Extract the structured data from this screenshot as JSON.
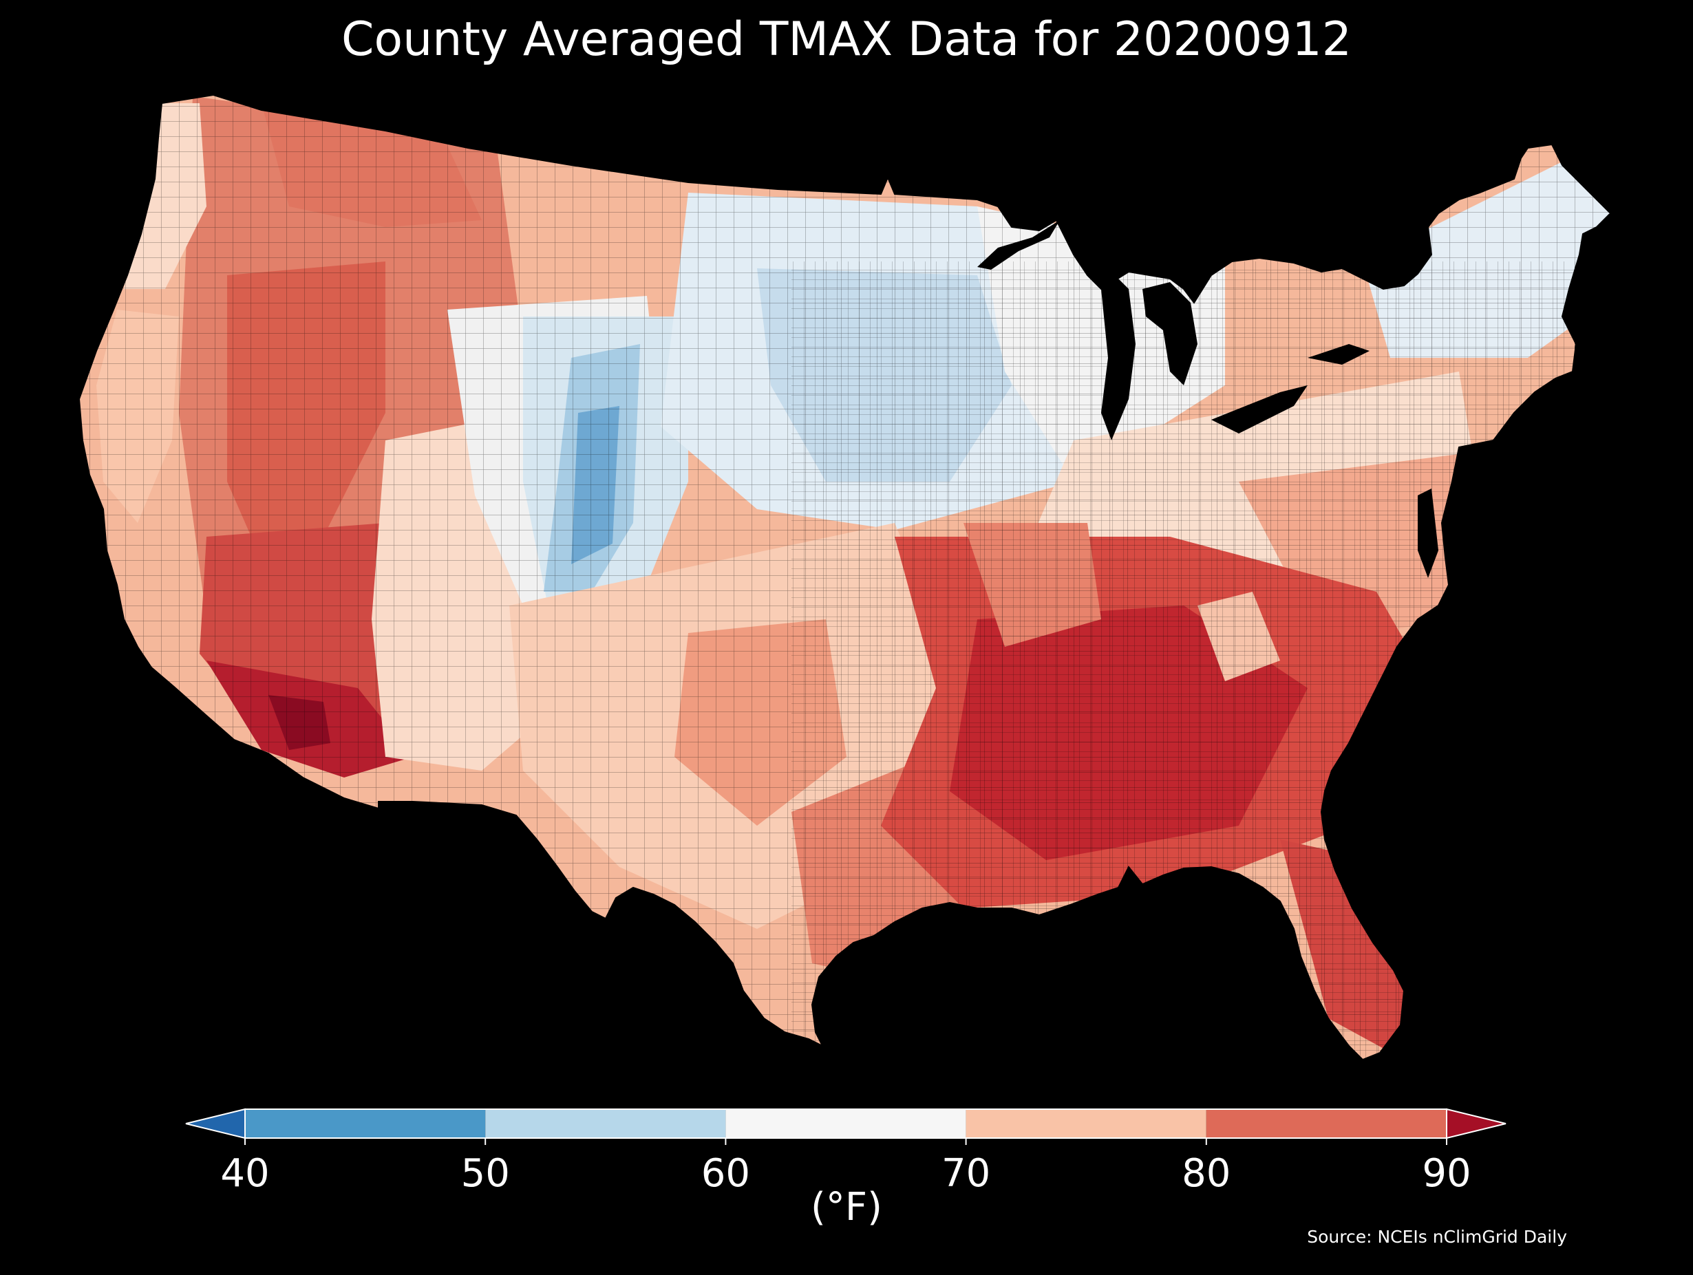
{
  "title": "County Averaged TMAX Data for 20200912",
  "source": "Source: NCEIs nClimGrid Daily",
  "colorbar": {
    "label": "(°F)",
    "ticks": [
      40,
      50,
      60,
      70,
      80,
      90
    ],
    "bins": [
      {
        "range": [
          40,
          50
        ],
        "color": "#4a98c8"
      },
      {
        "range": [
          50,
          60
        ],
        "color": "#b6d7ea"
      },
      {
        "range": [
          60,
          70
        ],
        "color": "#f6f6f6"
      },
      {
        "range": [
          70,
          80
        ],
        "color": "#f9c3a7"
      },
      {
        "range": [
          80,
          90
        ],
        "color": "#de6a58"
      }
    ],
    "extend_low_color": "#2166ac",
    "extend_high_color": "#a50f26"
  },
  "map": {
    "region": "Contiguous United States",
    "variable": "TMAX",
    "date": "20200912",
    "regions": [
      {
        "name": "northwest-coast",
        "temp_bin": "70-80"
      },
      {
        "name": "northern-rockies",
        "temp_bin": "80-90"
      },
      {
        "name": "great-basin",
        "temp_bin": "80-90"
      },
      {
        "name": "california-coast",
        "temp_bin": "70-80"
      },
      {
        "name": "desert-southwest",
        "temp_bin": "above-90"
      },
      {
        "name": "colorado-front-range",
        "temp_bin": "40-50"
      },
      {
        "name": "northern-plains",
        "temp_bin": "50-60"
      },
      {
        "name": "upper-midwest",
        "temp_bin": "60-70"
      },
      {
        "name": "new-england",
        "temp_bin": "60-70"
      },
      {
        "name": "texas-plains",
        "temp_bin": "70-80"
      },
      {
        "name": "deep-south",
        "temp_bin": "80-90"
      },
      {
        "name": "florida",
        "temp_bin": "80-90"
      },
      {
        "name": "mid-atlantic",
        "temp_bin": "70-80"
      }
    ]
  }
}
